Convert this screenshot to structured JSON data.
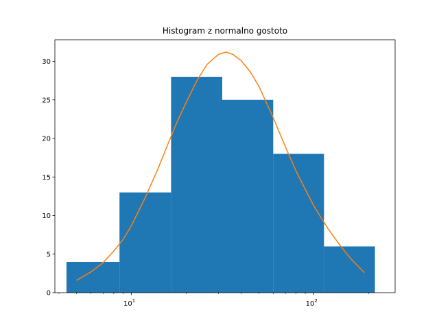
{
  "chart_data": {
    "type": "bar",
    "title": "Histogram z normalno gostoto",
    "xlabel": "",
    "ylabel": "",
    "xscale": "log",
    "xlim": [
      3.8,
      280
    ],
    "ylim": [
      0,
      32.8
    ],
    "grid": false,
    "bins": [
      {
        "x0": 4.4,
        "x1": 8.6,
        "count": 4
      },
      {
        "x0": 8.6,
        "x1": 16.5,
        "count": 13
      },
      {
        "x0": 16.5,
        "x1": 31.5,
        "count": 28
      },
      {
        "x0": 31.5,
        "x1": 60,
        "count": 25
      },
      {
        "x0": 60,
        "x1": 114,
        "count": 18
      },
      {
        "x0": 114,
        "x1": 217,
        "count": 6
      }
    ],
    "bar_color": "#1f77b4",
    "curve": {
      "type": "line",
      "color": "#ff7f0e",
      "x": [
        5,
        6,
        7,
        8,
        9,
        10,
        12,
        14,
        16,
        18,
        20,
        23,
        26,
        30,
        33,
        36,
        40,
        45,
        50,
        60,
        70,
        80,
        90,
        100,
        110,
        120,
        140,
        160,
        190
      ],
      "y": [
        1.6,
        2.7,
        3.9,
        5.4,
        6.9,
        8.7,
        12.5,
        16.1,
        19.5,
        22.4,
        24.7,
        27.6,
        29.6,
        30.9,
        31.2,
        30.9,
        30.1,
        28.6,
        26.8,
        22.7,
        18.9,
        15.8,
        13.4,
        11.3,
        9.7,
        8.3,
        6.1,
        4.4,
        2.6
      ]
    },
    "y_ticks": [
      0,
      5,
      10,
      15,
      20,
      25,
      30
    ],
    "x_major_ticks": [
      10,
      100
    ],
    "x_major_tick_labels": [
      {
        "base": "10",
        "exp": "1"
      },
      {
        "base": "10",
        "exp": "2"
      }
    ],
    "x_minor_ticks": [
      4,
      5,
      6,
      7,
      8,
      9,
      20,
      30,
      40,
      50,
      60,
      70,
      80,
      90,
      200
    ]
  }
}
